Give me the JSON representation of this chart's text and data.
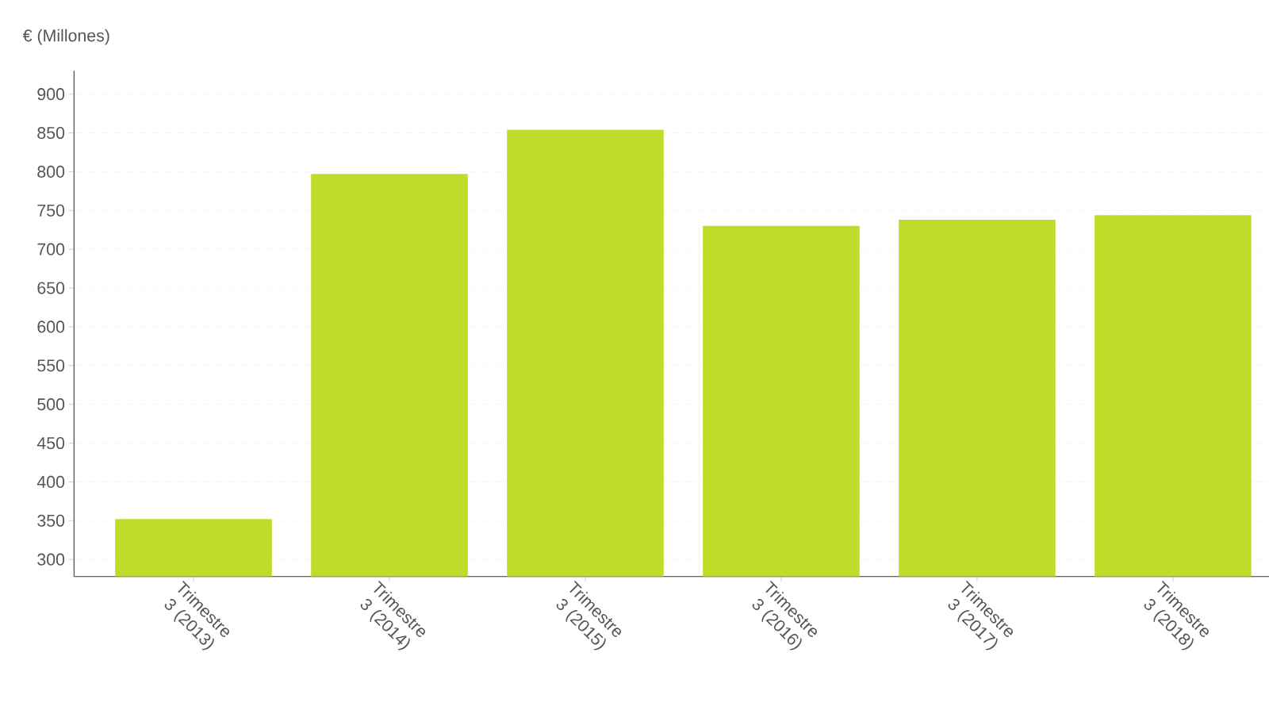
{
  "chart_data": {
    "type": "bar",
    "ylabel": "€ (Millones)",
    "categories": [
      "Trimestre 3 (2013)",
      "Trimestre 3 (2014)",
      "Trimestre 3 (2015)",
      "Trimestre 3 (2016)",
      "Trimestre 3 (2017)",
      "Trimestre 3 (2018)"
    ],
    "values": [
      352,
      797,
      854,
      730,
      738,
      744
    ],
    "color": "#bfdc28",
    "ylim": [
      278,
      930
    ],
    "yticks": [
      300,
      350,
      400,
      450,
      500,
      550,
      600,
      650,
      700,
      750,
      800,
      850,
      900
    ],
    "grid": "y"
  }
}
